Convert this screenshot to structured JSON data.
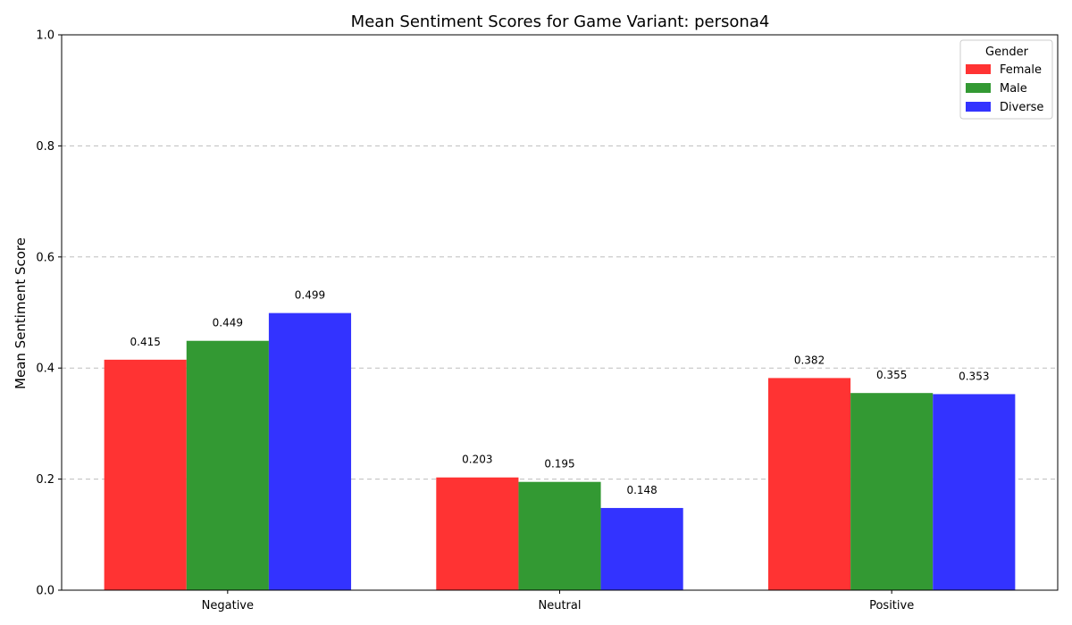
{
  "chart_data": {
    "type": "bar",
    "title": "Mean Sentiment Scores for Game Variant: persona4",
    "xlabel": "",
    "ylabel": "Mean Sentiment Score",
    "categories": [
      "Negative",
      "Neutral",
      "Positive"
    ],
    "series": [
      {
        "name": "Female",
        "values": [
          0.415,
          0.203,
          0.382
        ],
        "color": "#ff3333"
      },
      {
        "name": "Male",
        "values": [
          0.449,
          0.195,
          0.355
        ],
        "color": "#339933"
      },
      {
        "name": "Diverse",
        "values": [
          0.499,
          0.148,
          0.353
        ],
        "color": "#3333ff"
      }
    ],
    "ylim": [
      0,
      1.0
    ],
    "yticks": [
      "0.0",
      "0.2",
      "0.4",
      "0.6",
      "0.8",
      "1.0"
    ],
    "grid": "y-dashed",
    "legend": {
      "title": "Gender",
      "placement": "top-right"
    }
  }
}
